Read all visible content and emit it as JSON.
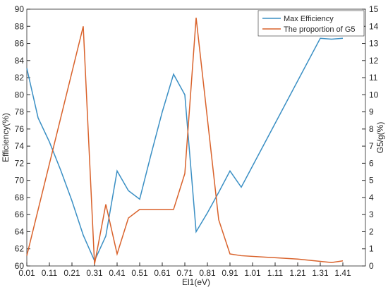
{
  "chart_data": {
    "type": "line",
    "xlabel": "El1(eV)",
    "ylabel": "Efficiency(%)",
    "y2label": "G5/g(%)",
    "xlim": [
      0.01,
      1.51
    ],
    "xticks": [
      0.01,
      0.11,
      0.21,
      0.31,
      0.41,
      0.51,
      0.61,
      0.71,
      0.81,
      0.91,
      1.01,
      1.11,
      1.21,
      1.31,
      1.41
    ],
    "ylim": [
      60,
      90
    ],
    "yticks": [
      60,
      62,
      64,
      66,
      68,
      70,
      72,
      74,
      76,
      78,
      80,
      82,
      84,
      86,
      88,
      90
    ],
    "y2lim": [
      0,
      15
    ],
    "y2ticks": [
      0,
      1,
      2,
      3,
      4,
      5,
      6,
      7,
      8,
      9,
      10,
      11,
      12,
      13,
      14,
      15
    ],
    "grid": false,
    "legend": "upper right",
    "series": [
      {
        "name": "Max Efficiency",
        "color": "#3a8fc4",
        "x": [
          0.01,
          0.06,
          0.11,
          0.16,
          0.21,
          0.26,
          0.31,
          0.36,
          0.41,
          0.46,
          0.51,
          0.56,
          0.61,
          0.66,
          0.71,
          0.76,
          0.81,
          0.86,
          0.91,
          0.96,
          1.31,
          1.36,
          1.41
        ],
        "values": [
          83.1,
          77.3,
          74.5,
          71.2,
          67.6,
          63.6,
          60.6,
          63.5,
          71.1,
          68.8,
          67.8,
          73,
          78,
          82.4,
          80,
          64,
          66.2,
          68.6,
          71.1,
          69.2,
          86.6,
          86.5,
          86.6
        ]
      },
      {
        "name": "The proportion of G5",
        "color": "#d9622b",
        "axis": "y2",
        "x": [
          0.01,
          0.26,
          0.31,
          0.36,
          0.41,
          0.46,
          0.51,
          0.66,
          0.71,
          0.76,
          0.86,
          0.91,
          0.96,
          1.21,
          1.36,
          1.41
        ],
        "values": [
          0.6,
          14.0,
          0.1,
          3.6,
          0.7,
          2.8,
          3.3,
          3.3,
          5.4,
          14.5,
          2.7,
          0.7,
          0.6,
          0.4,
          0.2,
          0.3
        ]
      }
    ]
  }
}
